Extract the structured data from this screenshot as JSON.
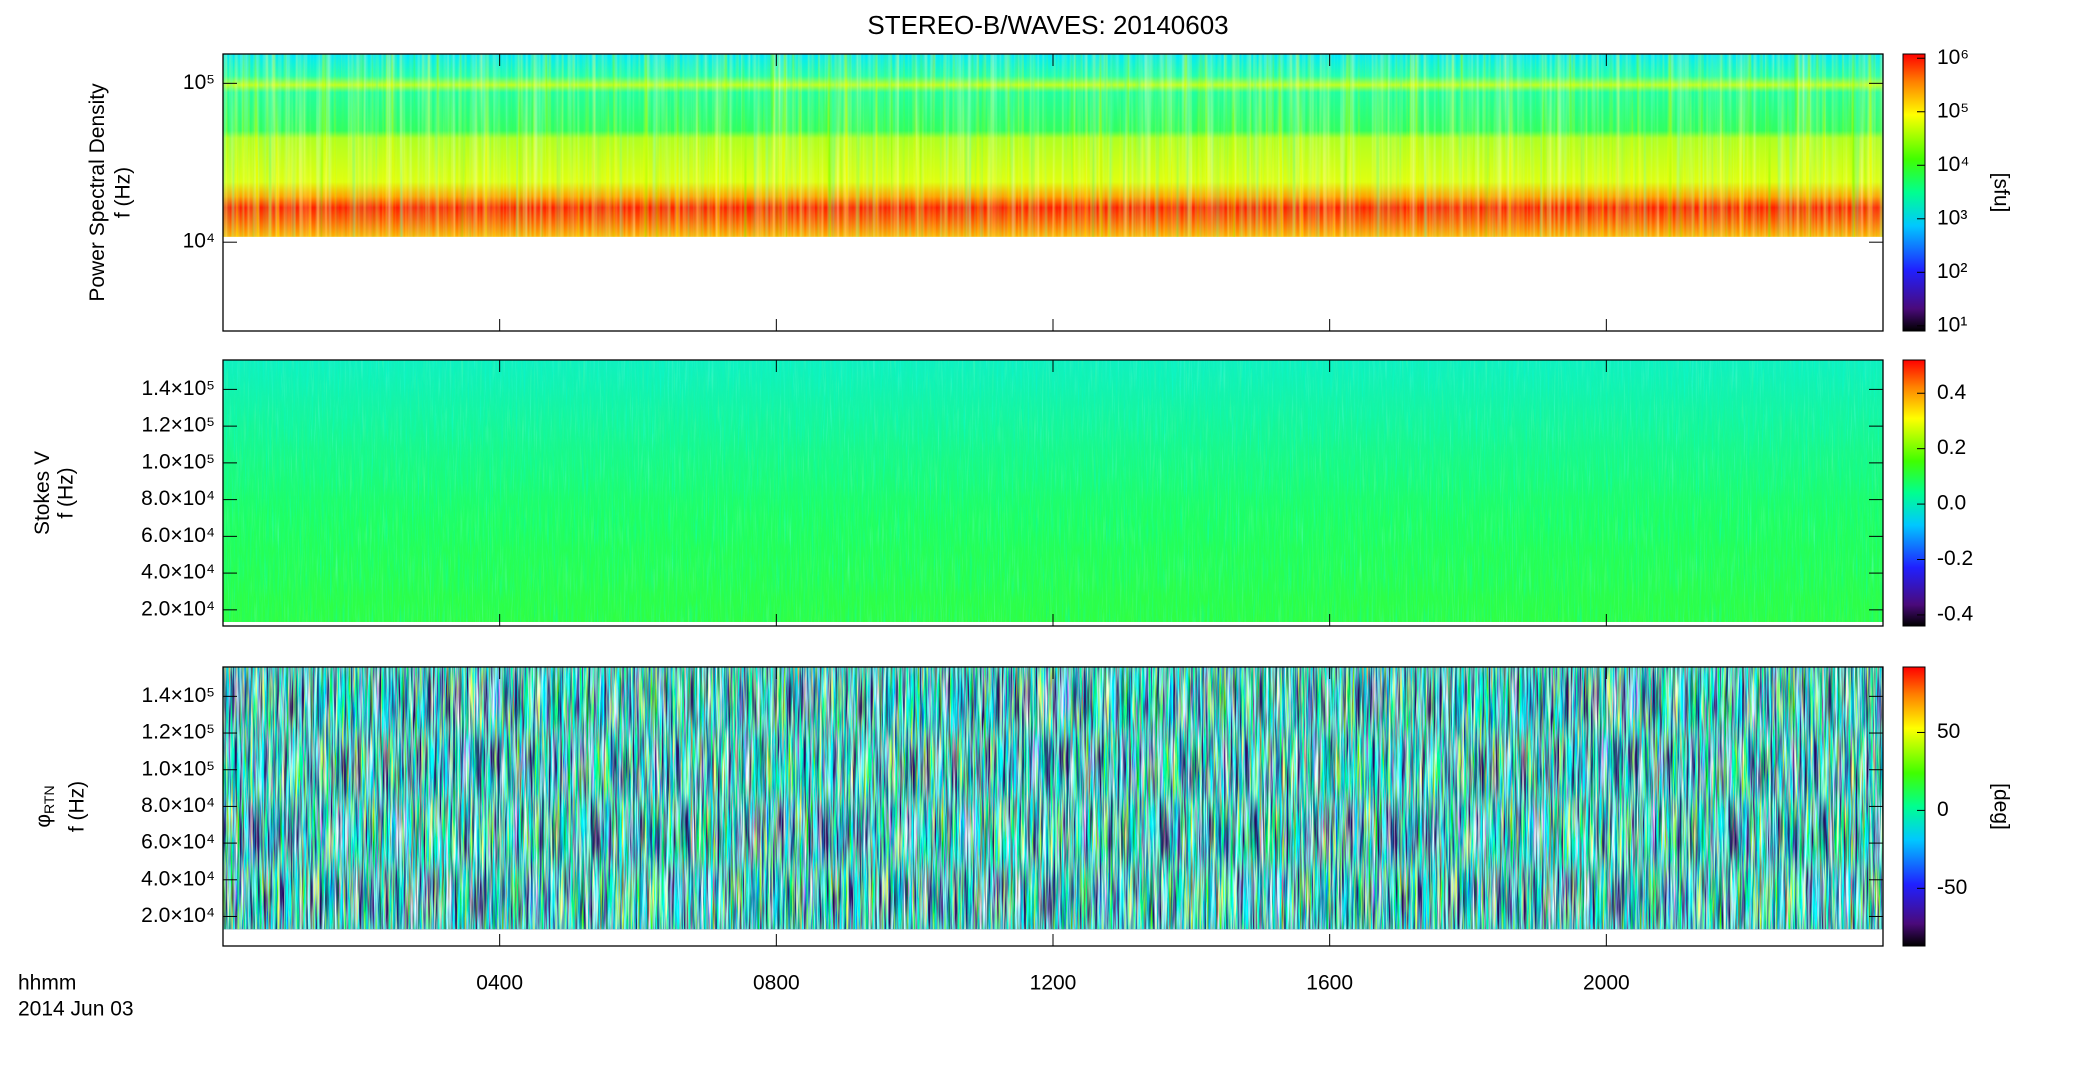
{
  "title": "STEREO-B/WAVES: 20140603",
  "x_axis": {
    "label": [
      "hhmm",
      "2014 Jun 03"
    ],
    "xlim": [
      0,
      24
    ],
    "xticks": [
      {
        "value": 4,
        "label": "0400"
      },
      {
        "value": 8,
        "label": "0800"
      },
      {
        "value": 12,
        "label": "1200"
      },
      {
        "value": 16,
        "label": "1600"
      },
      {
        "value": 20,
        "label": "2000"
      }
    ]
  },
  "chart_data": [
    {
      "type": "heatmap",
      "quantity": "Power Spectral Density",
      "ylabel": "f (Hz)",
      "log_y": true,
      "ylim": [
        2760,
        153000
      ],
      "yticks": [
        {
          "value": 10000,
          "label": "10⁴"
        },
        {
          "value": 100000,
          "label": "10⁵"
        }
      ],
      "colorbar": {
        "label": "[sfu]",
        "log": true,
        "lim": [
          8,
          1200000
        ],
        "ticks": [
          {
            "value": 10,
            "label": "10¹"
          },
          {
            "value": 100,
            "label": "10²"
          },
          {
            "value": 1000,
            "label": "10³"
          },
          {
            "value": 10000,
            "label": "10⁴"
          },
          {
            "value": 100000,
            "label": "10⁵"
          },
          {
            "value": 1000000,
            "label": "10⁶"
          }
        ]
      }
    },
    {
      "type": "heatmap",
      "quantity": "Stokes V",
      "ylabel": "f (Hz)",
      "log_y": false,
      "ylim": [
        11200,
        156000
      ],
      "yticks": [
        {
          "value": 20000,
          "label": "2.0×10⁴"
        },
        {
          "value": 40000,
          "label": "4.0×10⁴"
        },
        {
          "value": 60000,
          "label": "6.0×10⁴"
        },
        {
          "value": 80000,
          "label": "8.0×10⁴"
        },
        {
          "value": 100000,
          "label": "1.0×10⁵"
        },
        {
          "value": 120000,
          "label": "1.2×10⁵"
        },
        {
          "value": 140000,
          "label": "1.4×10⁵"
        }
      ],
      "colorbar": {
        "log": false,
        "lim": [
          -0.44,
          0.52
        ],
        "ticks": [
          -0.4,
          -0.2,
          {
            "value": 0,
            "label": "0.0"
          },
          0.2,
          0.4
        ]
      }
    },
    {
      "type": "heatmap",
      "quantity": "φ",
      "quantity_sub": "RTN",
      "ylabel": "f (Hz)",
      "log_y": false,
      "ylim": [
        3900,
        156000
      ],
      "yticks": [
        {
          "value": 20000,
          "label": "2.0×10⁴"
        },
        {
          "value": 40000,
          "label": "4.0×10⁴"
        },
        {
          "value": 60000,
          "label": "6.0×10⁴"
        },
        {
          "value": 80000,
          "label": "8.0×10⁴"
        },
        {
          "value": 100000,
          "label": "1.0×10⁵"
        },
        {
          "value": 120000,
          "label": "1.2×10⁵"
        },
        {
          "value": 140000,
          "label": "1.4×10⁵"
        }
      ],
      "colorbar": {
        "label": "[deg]",
        "log": false,
        "lim": [
          -87,
          92
        ],
        "ticks": [
          -50,
          0,
          50
        ]
      }
    }
  ]
}
